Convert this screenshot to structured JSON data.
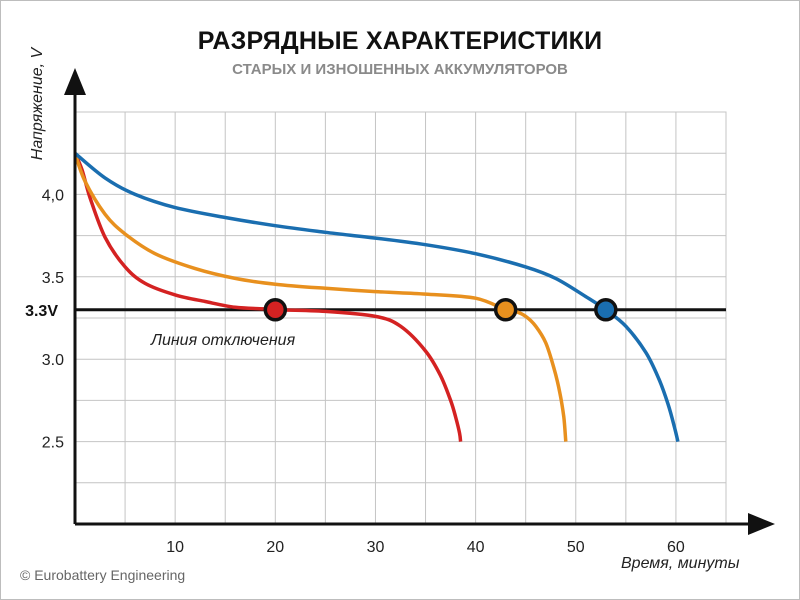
{
  "title": "РАЗРЯДНЫЕ ХАРАКТЕРИСТИКИ",
  "subtitle": "СТАРЫХ И ИЗНОШЕННЫХ АККУМУЛЯТОРОВ",
  "credit": "© Eurobattery Engineering",
  "chart_data": {
    "type": "line",
    "ylabel": "Напряжение, V",
    "xlabel": "Время, минуты",
    "xlim": [
      0,
      65
    ],
    "ylim": [
      2.0,
      4.5
    ],
    "grid": true,
    "x_gridlines": [
      0,
      5,
      10,
      15,
      20,
      25,
      30,
      35,
      40,
      45,
      50,
      55,
      60,
      65
    ],
    "y_gridlines": [
      2.25,
      2.5,
      2.75,
      3.0,
      3.25,
      3.5,
      3.75,
      4.0,
      4.25
    ],
    "x_tick_labels": [
      {
        "x": 10,
        "text": "10"
      },
      {
        "x": 20,
        "text": "20"
      },
      {
        "x": 30,
        "text": "30"
      },
      {
        "x": 40,
        "text": "40"
      },
      {
        "x": 50,
        "text": "50"
      },
      {
        "x": 60,
        "text": "60"
      }
    ],
    "y_tick_labels": [
      {
        "y": 4.0,
        "text": "4,0"
      },
      {
        "y": 3.5,
        "text": "3.5"
      },
      {
        "y": 3.0,
        "text": "3.0"
      },
      {
        "y": 2.5,
        "text": "2.5"
      }
    ],
    "reference_line": {
      "y": 3.3,
      "label": "3.3V",
      "annotation": "Линия отключения",
      "color": "#111111"
    },
    "series": [
      {
        "color": "#d42222",
        "x": [
          0,
          0.7,
          1.5,
          3,
          5,
          7,
          10,
          13,
          16,
          19,
          20,
          25,
          30,
          32.5,
          35,
          36.5,
          37.5,
          38,
          38.4,
          38.5
        ],
        "y": [
          4.25,
          4.15,
          3.98,
          3.74,
          3.56,
          3.46,
          3.39,
          3.35,
          3.315,
          3.305,
          3.3,
          3.29,
          3.26,
          3.2,
          3.05,
          2.9,
          2.75,
          2.65,
          2.55,
          2.5
        ],
        "cutoff": {
          "x": 20,
          "y": 3.3
        }
      },
      {
        "color": "#e8901e",
        "x": [
          0,
          1,
          3,
          5,
          8,
          12,
          16,
          20,
          25,
          30,
          35,
          40,
          43,
          44,
          45,
          46,
          47,
          47.8,
          48.4,
          48.8,
          49
        ],
        "y": [
          4.25,
          4.08,
          3.88,
          3.76,
          3.64,
          3.55,
          3.49,
          3.455,
          3.43,
          3.41,
          3.395,
          3.37,
          3.3,
          3.29,
          3.26,
          3.2,
          3.1,
          2.95,
          2.8,
          2.65,
          2.5
        ],
        "cutoff": {
          "x": 43,
          "y": 3.3
        }
      },
      {
        "color": "#1a6eb0",
        "x": [
          0,
          3,
          6,
          10,
          15,
          20,
          25,
          30,
          35,
          40,
          45,
          48,
          51,
          53,
          55,
          57,
          58.3,
          59.2,
          59.8,
          60.2
        ],
        "y": [
          4.25,
          4.1,
          4.0,
          3.92,
          3.86,
          3.81,
          3.77,
          3.735,
          3.695,
          3.64,
          3.56,
          3.49,
          3.38,
          3.3,
          3.2,
          3.04,
          2.88,
          2.73,
          2.6,
          2.5
        ],
        "cutoff": {
          "x": 53,
          "y": 3.3
        }
      }
    ]
  }
}
